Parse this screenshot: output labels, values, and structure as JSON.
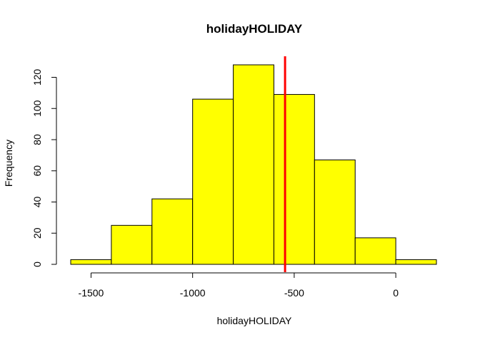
{
  "chart_data": {
    "type": "bar",
    "subtype": "histogram",
    "title": "holidayHOLIDAY",
    "xlabel": "holidayHOLIDAY",
    "ylabel": "Frequency",
    "bins": [
      {
        "start": -1600,
        "end": -1400,
        "count": 3
      },
      {
        "start": -1400,
        "end": -1200,
        "count": 25
      },
      {
        "start": -1200,
        "end": -1000,
        "count": 42
      },
      {
        "start": -1000,
        "end": -800,
        "count": 106
      },
      {
        "start": -800,
        "end": -600,
        "count": 128
      },
      {
        "start": -600,
        "end": -400,
        "count": 109
      },
      {
        "start": -400,
        "end": -200,
        "count": 67
      },
      {
        "start": -200,
        "end": 0,
        "count": 17
      },
      {
        "start": 0,
        "end": 200,
        "count": 3
      }
    ],
    "xlim": [
      -1600,
      200
    ],
    "ylim": [
      0,
      128
    ],
    "x_ticks": [
      -1500,
      -1000,
      -500,
      0
    ],
    "x_tick_labels": [
      "-1500",
      "-1000",
      "-500",
      "0"
    ],
    "y_ticks": [
      0,
      20,
      40,
      60,
      80,
      100,
      120
    ],
    "y_tick_labels": [
      "0",
      "20",
      "40",
      "60",
      "80",
      "100",
      "120"
    ],
    "reference_line": {
      "x": -545,
      "color": "#ff0000"
    },
    "bar_color": "#ffff00",
    "grid": false,
    "legend": "none"
  }
}
